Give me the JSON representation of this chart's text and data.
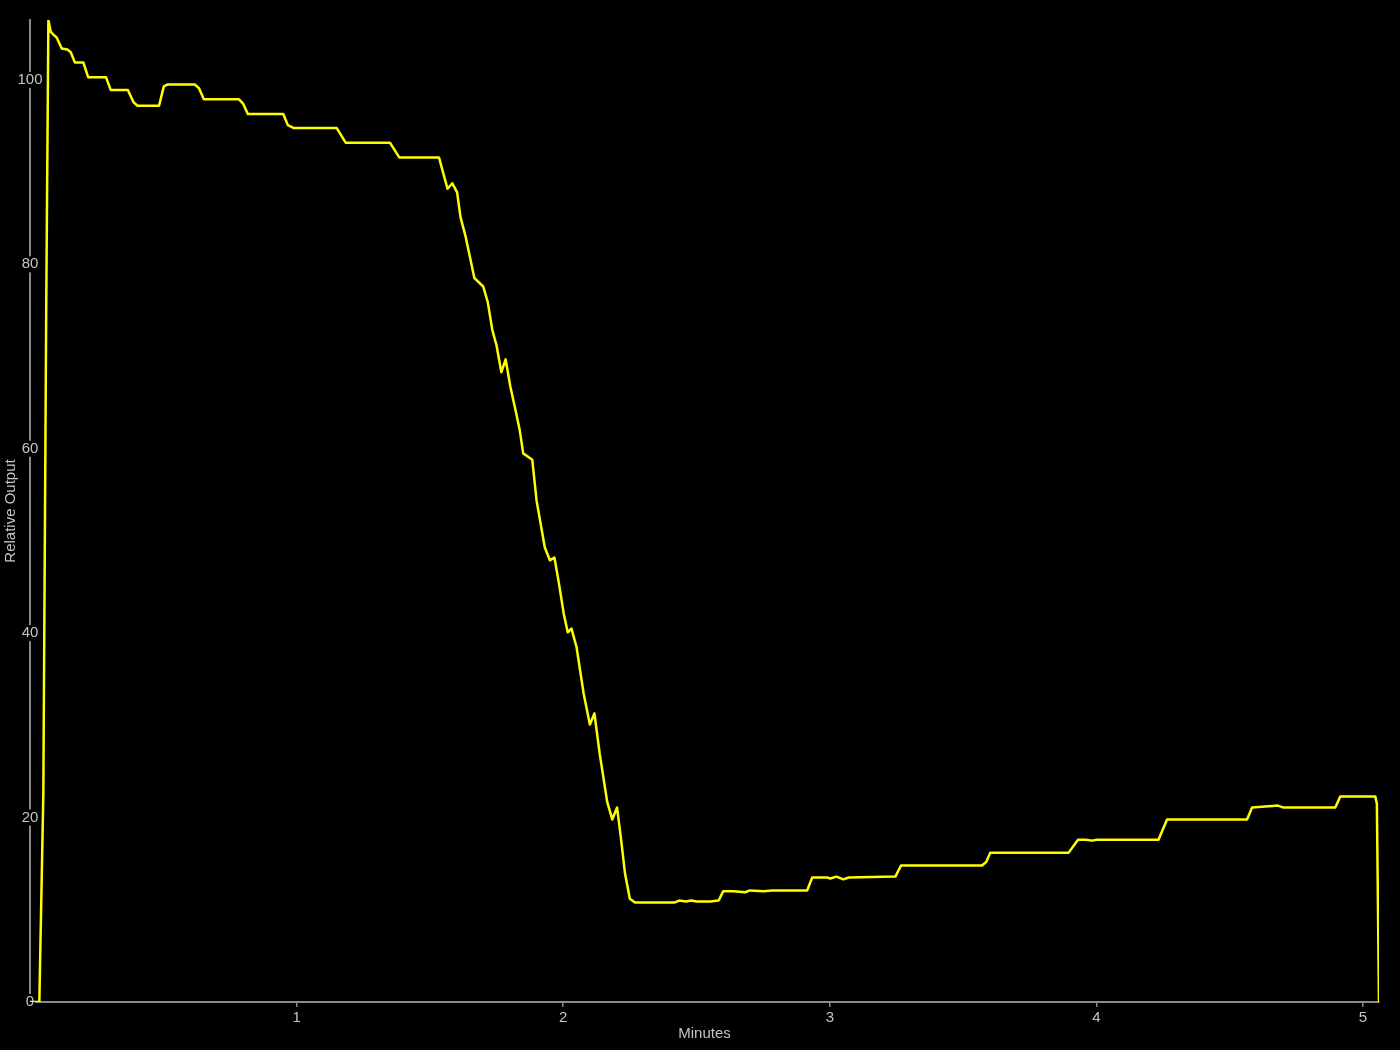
{
  "chart_data": {
    "type": "line",
    "xlabel": "Minutes",
    "ylabel": "Relative Output",
    "x": [
      0,
      0.035,
      0.05,
      0.061,
      0.069,
      0.078,
      0.088,
      0.1,
      0.119,
      0.14,
      0.153,
      0.168,
      0.2,
      0.218,
      0.285,
      0.303,
      0.367,
      0.388,
      0.403,
      0.484,
      0.502,
      0.515,
      0.618,
      0.634,
      0.652,
      0.784,
      0.8,
      0.817,
      0.95,
      0.967,
      0.988,
      1.15,
      1.184,
      1.35,
      1.385,
      1.534,
      1.566,
      1.584,
      1.602,
      1.615,
      1.634,
      1.667,
      1.7,
      1.717,
      1.734,
      1.75,
      1.768,
      1.784,
      1.802,
      1.821,
      1.837,
      1.85,
      1.884,
      1.9,
      1.931,
      1.95,
      1.967,
      1.984,
      2.002,
      2.017,
      2.031,
      2.05,
      2.077,
      2.1,
      2.117,
      2.137,
      2.165,
      2.184,
      2.202,
      2.216,
      2.232,
      2.25,
      2.269,
      2.419,
      2.435,
      2.46,
      2.48,
      2.5,
      2.552,
      2.583,
      2.6,
      2.64,
      2.683,
      2.7,
      2.752,
      2.784,
      2.915,
      2.934,
      2.99,
      3.002,
      3.025,
      3.051,
      3.071,
      3.246,
      3.267,
      3.571,
      3.587,
      3.602,
      3.896,
      3.931,
      3.96,
      3.983,
      4.002,
      4.233,
      4.246,
      4.265,
      4.565,
      4.584,
      4.681,
      4.7,
      4.896,
      4.915,
      5.046,
      5.052,
      5.06
    ],
    "series": [
      {
        "color": "#ffff00",
        "values": [
          0,
          0,
          22.6,
          76,
          106.5,
          105.2,
          104.9,
          104.6,
          103.4,
          103.3,
          103.0,
          101.9,
          101.9,
          100.3,
          100.3,
          98.9,
          98.9,
          97.6,
          97.2,
          97.2,
          99.3,
          99.5,
          99.5,
          99.1,
          97.9,
          97.9,
          97.4,
          96.3,
          96.3,
          95.1,
          94.8,
          94.8,
          93.2,
          93.2,
          91.6,
          91.6,
          88.2,
          88.8,
          87.8,
          85.1,
          83.0,
          78.5,
          77.6,
          75.9,
          72.9,
          71.2,
          68.3,
          69.7,
          66.7,
          64.2,
          62.0,
          59.5,
          58.8,
          54.4,
          49.3,
          47.9,
          48.2,
          45.4,
          42.1,
          40.1,
          40.5,
          38.5,
          33.4,
          30.1,
          31.3,
          26.9,
          21.7,
          19.8,
          21.1,
          17.9,
          13.9,
          11.2,
          10.8,
          10.8,
          11.0,
          10.9,
          11.0,
          10.9,
          10.9,
          11.0,
          12.0,
          12.0,
          11.9,
          12.1,
          12.0,
          12.1,
          12.1,
          13.5,
          13.5,
          13.4,
          13.6,
          13.3,
          13.5,
          13.6,
          14.8,
          14.8,
          15.2,
          16.2,
          16.2,
          17.6,
          17.6,
          17.5,
          17.6,
          17.6,
          18.5,
          19.8,
          19.8,
          21.1,
          21.3,
          21.1,
          21.1,
          22.3,
          22.3,
          21.5,
          0
        ]
      }
    ],
    "xlim": [
      0,
      5.06
    ],
    "xticks": [
      1,
      2,
      3,
      4,
      5
    ],
    "ylim": [
      0,
      106.5
    ],
    "yticks": [
      0,
      20,
      40,
      60,
      80,
      100
    ]
  }
}
